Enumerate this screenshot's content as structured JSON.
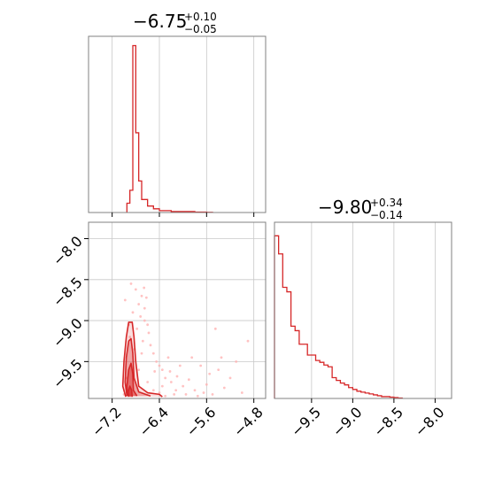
{
  "chart_data": [
    {
      "type": "histogram",
      "panel": "top-left",
      "title": {
        "main": "−6.75",
        "upper": "+0.10",
        "lower": "−0.05"
      },
      "xlim": [
        -7.6,
        -4.6
      ],
      "xticks": [
        -7.2,
        -6.4,
        -5.6,
        -4.8
      ],
      "line_color": "#d62728",
      "bin_edges": [
        -6.95,
        -6.9,
        -6.85,
        -6.8,
        -6.75,
        -6.7,
        -6.6,
        -6.5,
        -6.4,
        -6.2,
        -6.0,
        -5.8,
        -5.6,
        -5.5
      ],
      "counts": [
        10,
        24,
        180,
        86,
        34,
        14,
        7,
        4,
        2,
        1,
        1,
        0.5,
        0.2
      ],
      "ylim": [
        0,
        190
      ]
    },
    {
      "type": "histogram",
      "panel": "bottom-right",
      "title": {
        "main": "−9.80",
        "upper": "+0.34",
        "lower": "−0.14"
      },
      "xlim": [
        -9.95,
        -7.8
      ],
      "xticks": [
        -9.5,
        -9.0,
        -8.5,
        -8.0
      ],
      "xtick_labels": [
        "−9.5",
        "−9.0",
        "−8.5",
        "−8.0"
      ],
      "line_color": "#d62728",
      "bin_edges": [
        -9.95,
        -9.9,
        -9.85,
        -9.8,
        -9.75,
        -9.7,
        -9.65,
        -9.6,
        -9.55,
        -9.5,
        -9.45,
        -9.4,
        -9.35,
        -9.3,
        -9.25,
        -9.2,
        -9.15,
        -9.1,
        -9.05,
        -9.0,
        -8.95,
        -8.9,
        -8.85,
        -8.8,
        -8.75,
        -8.7,
        -8.65,
        -8.6,
        -8.55,
        -8.5,
        -8.45,
        -8.4
      ],
      "counts": [
        180,
        160,
        123,
        118,
        80,
        75,
        60,
        60,
        48,
        48,
        42,
        40,
        37,
        35,
        23,
        20,
        17,
        15,
        12,
        10,
        8,
        7,
        6,
        5,
        4,
        3,
        2,
        2,
        1.5,
        1,
        0.5
      ],
      "ylim": [
        0,
        195
      ]
    },
    {
      "type": "scatter-contour",
      "panel": "bottom-left",
      "xlim": [
        -7.6,
        -4.6
      ],
      "ylim": [
        -9.95,
        -7.8
      ],
      "xticks": [
        -7.2,
        -6.4,
        -5.6,
        -4.8
      ],
      "xtick_labels": [
        "−7.2",
        "−6.4",
        "−5.6",
        "−4.8"
      ],
      "yticks": [
        -8.0,
        -8.5,
        -9.0,
        -9.5
      ],
      "ytick_labels": [
        "−8.0",
        "−8.5",
        "−9.0",
        "−9.5"
      ],
      "point_color": "#ffb3b3",
      "contour_color": "#d62728",
      "points": [
        [
          -6.88,
          -8.55
        ],
        [
          -6.8,
          -8.62
        ],
        [
          -6.7,
          -8.7
        ],
        [
          -6.62,
          -8.72
        ],
        [
          -6.75,
          -8.8
        ],
        [
          -6.85,
          -8.9
        ],
        [
          -6.72,
          -8.95
        ],
        [
          -6.65,
          -9.0
        ],
        [
          -6.6,
          -9.05
        ],
        [
          -6.78,
          -9.1
        ],
        [
          -6.9,
          -9.2
        ],
        [
          -6.68,
          -9.25
        ],
        [
          -6.55,
          -9.3
        ],
        [
          -6.5,
          -9.4
        ],
        [
          -6.45,
          -9.5
        ],
        [
          -6.4,
          -9.55
        ],
        [
          -6.35,
          -9.6
        ],
        [
          -6.3,
          -9.7
        ],
        [
          -6.2,
          -9.75
        ],
        [
          -6.1,
          -9.68
        ],
        [
          -6.0,
          -9.8
        ],
        [
          -5.9,
          -9.72
        ],
        [
          -5.8,
          -9.85
        ],
        [
          -5.7,
          -9.55
        ],
        [
          -5.6,
          -9.78
        ],
        [
          -5.5,
          -9.9
        ],
        [
          -5.4,
          -9.6
        ],
        [
          -5.3,
          -9.82
        ],
        [
          -5.2,
          -9.7
        ],
        [
          -5.1,
          -9.5
        ],
        [
          -5.0,
          -9.88
        ],
        [
          -5.85,
          -9.45
        ],
        [
          -6.25,
          -9.45
        ],
        [
          -6.05,
          -9.55
        ],
        [
          -5.55,
          -9.65
        ],
        [
          -5.35,
          -9.45
        ],
        [
          -4.9,
          -9.25
        ],
        [
          -5.45,
          -9.1
        ],
        [
          -6.15,
          -9.9
        ],
        [
          -6.5,
          -9.85
        ],
        [
          -6.6,
          -9.75
        ],
        [
          -6.4,
          -9.88
        ],
        [
          -6.3,
          -9.92
        ],
        [
          -6.75,
          -9.6
        ],
        [
          -6.7,
          -9.4
        ],
        [
          -6.95,
          -9.7
        ],
        [
          -7.0,
          -9.9
        ],
        [
          -6.82,
          -9.35
        ],
        [
          -6.58,
          -9.15
        ],
        [
          -6.48,
          -9.62
        ],
        [
          -6.35,
          -9.8
        ],
        [
          -6.22,
          -9.62
        ],
        [
          -6.12,
          -9.85
        ],
        [
          -5.95,
          -9.9
        ],
        [
          -5.75,
          -9.92
        ],
        [
          -5.65,
          -9.88
        ],
        [
          -6.65,
          -8.85
        ],
        [
          -6.92,
          -9.05
        ],
        [
          -6.98,
          -8.75
        ],
        [
          -6.66,
          -8.6
        ]
      ],
      "contour_levels": [
        [
          [
            -6.97,
            -9.93
          ],
          [
            -7.02,
            -9.8
          ],
          [
            -7.0,
            -9.5
          ],
          [
            -6.96,
            -9.2
          ],
          [
            -6.92,
            -9.02
          ],
          [
            -6.86,
            -9.02
          ],
          [
            -6.83,
            -9.2
          ],
          [
            -6.8,
            -9.5
          ],
          [
            -6.75,
            -9.8
          ],
          [
            -6.6,
            -9.88
          ],
          [
            -6.4,
            -9.9
          ],
          [
            -6.35,
            -9.93
          ]
        ],
        [
          [
            -6.95,
            -9.92
          ],
          [
            -6.98,
            -9.75
          ],
          [
            -6.96,
            -9.45
          ],
          [
            -6.92,
            -9.25
          ],
          [
            -6.88,
            -9.22
          ],
          [
            -6.85,
            -9.4
          ],
          [
            -6.83,
            -9.7
          ],
          [
            -6.75,
            -9.87
          ],
          [
            -6.55,
            -9.92
          ]
        ],
        [
          [
            -6.94,
            -9.92
          ],
          [
            -6.95,
            -9.8
          ],
          [
            -6.92,
            -9.6
          ],
          [
            -6.88,
            -9.52
          ],
          [
            -6.85,
            -9.65
          ],
          [
            -6.84,
            -9.85
          ],
          [
            -6.78,
            -9.92
          ]
        ],
        [
          [
            -6.92,
            -9.93
          ],
          [
            -6.93,
            -9.87
          ],
          [
            -6.9,
            -9.8
          ],
          [
            -6.87,
            -9.85
          ],
          [
            -6.86,
            -9.93
          ]
        ]
      ]
    }
  ]
}
